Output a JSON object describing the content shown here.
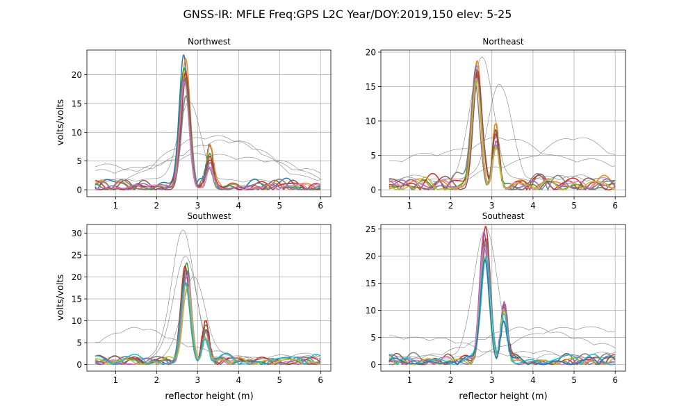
{
  "figure_title": "GNSS-IR: MFLE Freq:GPS L2C Year/DOY:2019,150 elev: 5-25",
  "chart_data": [
    {
      "type": "line",
      "title": "Northwest",
      "xlabel": "",
      "ylabel": "volts/volts",
      "xlim": [
        0.3,
        6.25
      ],
      "ylim": [
        -1.2,
        24.3
      ],
      "xticks": [
        1,
        2,
        3,
        4,
        5,
        6
      ],
      "yticks": [
        0,
        5,
        10,
        15,
        20
      ],
      "grid": true,
      "peak_x": 2.7,
      "peak_values": [
        23.1,
        22.0,
        21.0,
        19.5,
        19.0,
        18.5,
        17.7,
        15.5
      ],
      "secondary_peak": {
        "x": 3.3,
        "values": [
          7.5,
          6.5,
          6.0,
          5.0,
          4.5,
          4.0,
          3.5,
          3.0
        ]
      },
      "background_level": 1.5,
      "gray_curves": [
        {
          "start": 6.5,
          "plateau": 5.3,
          "plateau_x": 3.7,
          "end": 3.5
        },
        {
          "start": 5.2,
          "plateau": 7.8,
          "plateau_x": 3.7,
          "end": 4.5
        },
        {
          "start": 2.0,
          "plateau": 15.0,
          "plateau_x": 2.8,
          "end": 1.5
        },
        {
          "start": 1.0,
          "plateau": 9.0,
          "plateau_x": 3.4,
          "end": 2.0
        }
      ]
    },
    {
      "type": "line",
      "title": "Northeast",
      "xlabel": "",
      "ylabel": "",
      "xlim": [
        0.3,
        6.25
      ],
      "ylim": [
        -1.0,
        20.3
      ],
      "xticks": [
        1,
        2,
        3,
        4,
        5,
        6
      ],
      "yticks": [
        0,
        5,
        10,
        15,
        20
      ],
      "grid": true,
      "peak_x": 2.62,
      "peak_values": [
        17.5,
        17.3,
        17.0,
        16.5,
        16.0,
        15.5,
        15.0,
        14.5
      ],
      "secondary_peak": {
        "x": 3.1,
        "values": [
          8.5,
          8.0,
          7.5,
          7.0,
          6.5,
          6.0,
          5.5,
          5.0
        ]
      },
      "background_level": 2.0,
      "gray_curves": [
        {
          "start": 6.6,
          "plateau": 6.8,
          "plateau_x": 3.2,
          "end": 5.5
        },
        {
          "start": 1.5,
          "plateau": 19.3,
          "plateau_x": 2.75,
          "end": 2.0
        },
        {
          "start": 1.0,
          "plateau": 15.0,
          "plateau_x": 3.2,
          "end": 2.5
        },
        {
          "start": 2.0,
          "plateau": 6.5,
          "plateau_x": 5.0,
          "end": 3.0
        }
      ]
    },
    {
      "type": "line",
      "title": "Southwest",
      "xlabel": "reflector height (m)",
      "ylabel": "volts/volts",
      "xlim": [
        0.3,
        6.25
      ],
      "ylim": [
        -1.5,
        32.0
      ],
      "xticks": [
        1,
        2,
        3,
        4,
        5,
        6
      ],
      "yticks": [
        0,
        5,
        10,
        15,
        20,
        25,
        30
      ],
      "grid": true,
      "peak_x": 2.72,
      "peak_values": [
        22.0,
        21.5,
        21.0,
        20.0,
        19.0,
        18.0,
        17.5,
        17.0
      ],
      "secondary_peak": {
        "x": 3.2,
        "values": [
          9.0,
          8.0,
          7.5,
          7.0,
          6.5,
          6.0,
          5.5,
          5.0
        ]
      },
      "background_level": 2.0,
      "gray_curves": [
        {
          "start": 1.0,
          "plateau": 30.4,
          "plateau_x": 2.65,
          "end": 2.0
        },
        {
          "start": 1.5,
          "plateau": 24.5,
          "plateau_x": 2.7,
          "end": 1.5
        },
        {
          "start": 2.0,
          "plateau": 19.0,
          "plateau_x": 2.9,
          "end": 3.0
        },
        {
          "start": 1.0,
          "plateau": 7.5,
          "plateau_x": 1.5,
          "end": 2.0
        }
      ]
    },
    {
      "type": "line",
      "title": "Southeast",
      "xlabel": "reflector height (m)",
      "ylabel": "",
      "xlim": [
        0.3,
        6.25
      ],
      "ylim": [
        -1.2,
        25.8
      ],
      "xticks": [
        1,
        2,
        3,
        4,
        5,
        6
      ],
      "yticks": [
        0,
        5,
        10,
        15,
        20,
        25
      ],
      "grid": true,
      "peak_x": 2.85,
      "peak_values": [
        24.0,
        23.5,
        22.5,
        21.5,
        20.5,
        19.5,
        19.0,
        18.5
      ],
      "secondary_peak": {
        "x": 3.3,
        "values": [
          11.0,
          10.5,
          10.0,
          9.5,
          9.0,
          8.5,
          8.0,
          7.5
        ]
      },
      "background_level": 1.7,
      "gray_curves": [
        {
          "start": 1.5,
          "plateau": 24.7,
          "plateau_x": 2.85,
          "end": 2.0
        },
        {
          "start": 2.0,
          "plateau": 6.0,
          "plateau_x": 4.0,
          "end": 3.5
        },
        {
          "start": 1.0,
          "plateau": 5.5,
          "plateau_x": 5.0,
          "end": 4.0
        },
        {
          "start": 2.5,
          "plateau": 5.0,
          "plateau_x": 1.0,
          "end": 3.0
        }
      ]
    }
  ],
  "series_colors": [
    "#1f77b4",
    "#ff7f0e",
    "#2ca02c",
    "#d62728",
    "#9467bd",
    "#8c564b",
    "#e377c2",
    "#7f7f7f",
    "#bcbd22",
    "#17becf"
  ],
  "gray_color": "#808080",
  "grid_color": "#b0b0b0"
}
